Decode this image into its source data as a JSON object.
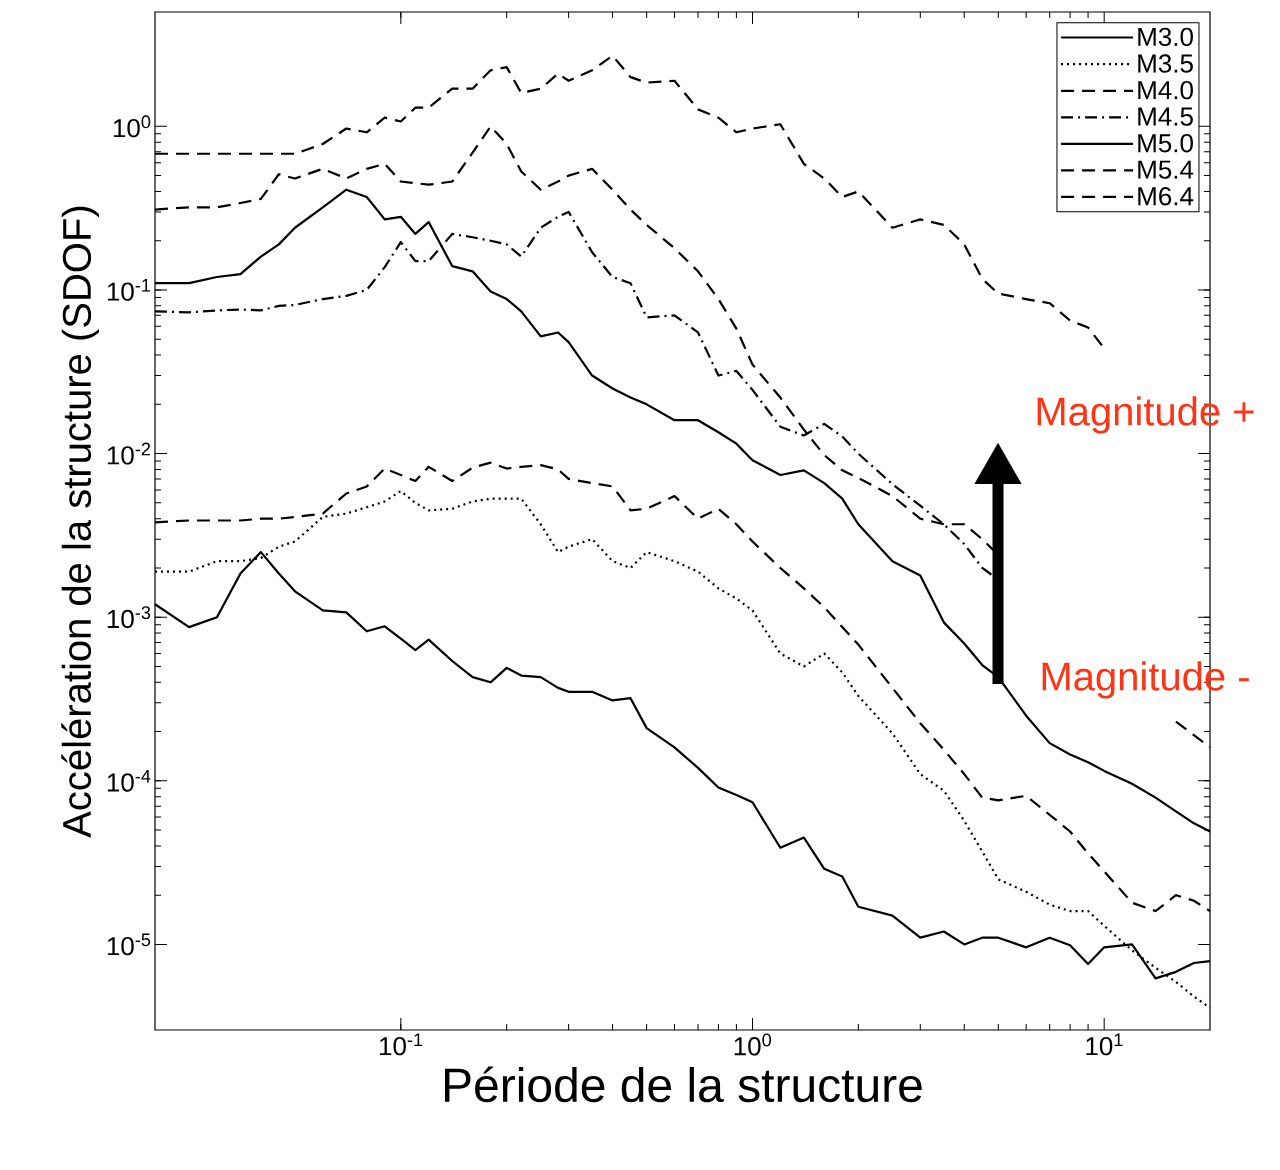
{
  "chart_data": {
    "type": "line",
    "xlabel": "Période de la structure",
    "ylabel": "Accélération de la structure (SDOF)",
    "log": "xy",
    "xlim": [
      0.02,
      20
    ],
    "ylim": [
      3e-06,
      5
    ],
    "xticks": [
      {
        "value": 0.1,
        "label": "10$^{-1}$"
      },
      {
        "value": 1,
        "label": "10$^{0}$"
      },
      {
        "value": 10,
        "label": "10$^{1}$"
      }
    ],
    "yticks": [
      {
        "value": 1e-05,
        "label": "10$^{-5}$"
      },
      {
        "value": 0.0001,
        "label": "10$^{-4}$"
      },
      {
        "value": 0.001,
        "label": "10$^{-3}$"
      },
      {
        "value": 0.01,
        "label": "10$^{-2}$"
      },
      {
        "value": 0.1,
        "label": "10$^{-1}$"
      },
      {
        "value": 1,
        "label": "10$^{0}$"
      }
    ],
    "legend": "top right",
    "annotations": [
      "Magnitude +",
      "Magnitude -"
    ],
    "x": [
      0.02,
      0.025,
      0.03,
      0.035,
      0.04,
      0.045,
      0.05,
      0.06,
      0.07,
      0.08,
      0.09,
      0.1,
      0.11,
      0.12,
      0.14,
      0.16,
      0.18,
      0.2,
      0.22,
      0.25,
      0.28,
      0.3,
      0.35,
      0.4,
      0.45,
      0.5,
      0.6,
      0.7,
      0.8,
      0.9,
      1,
      1.2,
      1.4,
      1.6,
      1.8,
      2,
      2.5,
      3,
      3.5,
      4,
      4.5,
      5,
      6,
      7,
      8,
      9,
      10,
      12,
      14,
      16,
      18,
      20
    ],
    "series": [
      {
        "name": "M3.0",
        "color": "#000000",
        "line_style": "solid",
        "values": [
          0.0012,
          0.00087,
          0.001,
          0.00185,
          0.0025,
          0.00185,
          0.00144,
          0.0011,
          0.00107,
          0.00082,
          0.00088,
          0.00074,
          0.00063,
          0.00073,
          0.00054,
          0.00043,
          0.0004,
          0.00049,
          0.00044,
          0.00043,
          0.00037,
          0.00035,
          0.00035,
          0.00031,
          0.00032,
          0.00021,
          0.00016,
          0.00012,
          9.1e-05,
          8.2e-05,
          7.4e-05,
          3.9e-05,
          4.5e-05,
          2.9e-05,
          2.6e-05,
          1.7e-05,
          1.5e-05,
          1.1e-05,
          1.2e-05,
          1e-05,
          1.1e-05,
          1.1e-05,
          9.6e-06,
          1.1e-05,
          9.9e-06,
          7.6e-06,
          9.6e-06,
          1e-05,
          6.2e-06,
          6.8e-06,
          7.7e-06,
          7.9e-06
        ]
      },
      {
        "name": "M3.5",
        "color": "#000000",
        "line_style": "dotted",
        "values": [
          0.0019,
          0.0019,
          0.0022,
          0.0022,
          0.0023,
          0.0027,
          0.0029,
          0.0041,
          0.0043,
          0.0047,
          0.0051,
          0.0059,
          0.005,
          0.0045,
          0.0046,
          0.0051,
          0.0053,
          0.0053,
          0.0053,
          0.0037,
          0.0025,
          0.0027,
          0.003,
          0.0022,
          0.002,
          0.0025,
          0.0022,
          0.0019,
          0.0015,
          0.0013,
          0.0011,
          0.0006,
          0.0005,
          0.0006,
          0.00046,
          0.00033,
          0.000195,
          0.00011,
          8.7e-05,
          5.7e-05,
          3.7e-05,
          2.5e-05,
          2.1e-05,
          1.75e-05,
          1.6e-05,
          1.6e-05,
          1.3e-05,
          9.2e-06,
          7.2e-06,
          5.9e-06,
          4.8e-06,
          4.1e-06
        ]
      },
      {
        "name": "M4.0",
        "color": "#000000",
        "line_style": "dashed",
        "values": [
          0.0038,
          0.0039,
          0.0039,
          0.0039,
          0.004,
          0.004,
          0.0041,
          0.0043,
          0.0057,
          0.0063,
          0.0081,
          0.0074,
          0.0068,
          0.0083,
          0.0068,
          0.0082,
          0.0088,
          0.0081,
          0.0083,
          0.0085,
          0.008,
          0.007,
          0.0066,
          0.0063,
          0.0045,
          0.0046,
          0.0055,
          0.004,
          0.0046,
          0.0037,
          0.0029,
          0.002,
          0.0015,
          0.00115,
          0.00087,
          0.00068,
          0.00037,
          0.000225,
          0.000155,
          0.00011,
          7.9e-05,
          7.6e-05,
          8.1e-05,
          6.2e-05,
          4.9e-05,
          3.6e-05,
          2.8e-05,
          1.8e-05,
          1.6e-05,
          2e-05,
          1.85e-05,
          1.6e-05
        ]
      },
      {
        "name": "M4.5",
        "color": "#000000",
        "line_style": "dashdot",
        "values": [
          0.074,
          0.073,
          0.075,
          0.076,
          0.075,
          0.08,
          0.081,
          0.088,
          0.092,
          0.1,
          0.138,
          0.196,
          0.15,
          0.15,
          0.22,
          0.21,
          0.2,
          0.19,
          0.16,
          0.24,
          0.28,
          0.3,
          0.17,
          0.12,
          0.11,
          0.068,
          0.07,
          0.055,
          0.03,
          0.032,
          0.0245,
          0.0146,
          0.0129,
          0.0152,
          0.0127,
          0.01,
          0.0065,
          0.0048,
          0.0037,
          0.0028,
          0.002,
          0.0017,
          null,
          null,
          null,
          null,
          null,
          null,
          null,
          null,
          null,
          null
        ]
      },
      {
        "name": "M5.0",
        "color": "#000000",
        "line_style": "solid",
        "values": [
          0.11,
          0.11,
          0.12,
          0.125,
          0.16,
          0.19,
          0.24,
          0.32,
          0.41,
          0.37,
          0.27,
          0.28,
          0.22,
          0.26,
          0.14,
          0.13,
          0.098,
          0.088,
          0.074,
          0.052,
          0.055,
          0.048,
          0.03,
          0.025,
          0.022,
          0.02,
          0.016,
          0.016,
          0.0135,
          0.0115,
          0.0091,
          0.0074,
          0.0079,
          0.0066,
          0.0053,
          0.0037,
          0.0022,
          0.0018,
          0.00093,
          0.00069,
          0.00051,
          0.00043,
          0.00025,
          0.00017,
          0.000145,
          0.00013,
          0.000115,
          9.6e-05,
          7.9e-05,
          6.5e-05,
          5.5e-05,
          4.9e-05
        ]
      },
      {
        "name": "M5.4",
        "color": "#000000",
        "line_style": "dashed",
        "values": [
          0.31,
          0.32,
          0.32,
          0.34,
          0.36,
          0.51,
          0.48,
          0.55,
          0.48,
          0.55,
          0.59,
          0.46,
          0.45,
          0.44,
          0.46,
          0.69,
          1.0,
          0.78,
          0.53,
          0.41,
          0.46,
          0.5,
          0.55,
          0.41,
          0.31,
          0.25,
          0.18,
          0.13,
          0.088,
          0.058,
          0.035,
          0.022,
          0.014,
          0.0098,
          0.0079,
          0.0071,
          0.0055,
          0.004,
          0.0037,
          0.0037,
          0.003,
          0.0024,
          null,
          null,
          null,
          null,
          null,
          null,
          null,
          null,
          null,
          null
        ]
      },
      {
        "name": "M6.4",
        "color": "#000000",
        "line_style": "dashed",
        "values": [
          0.68,
          0.68,
          0.68,
          0.68,
          0.68,
          0.68,
          0.68,
          0.78,
          0.97,
          0.92,
          1.13,
          1.07,
          1.3,
          1.3,
          1.7,
          1.7,
          2.2,
          2.3,
          1.6,
          1.7,
          2.1,
          1.9,
          2.2,
          2.7,
          2.0,
          1.85,
          1.9,
          1.27,
          1.13,
          0.92,
          0.97,
          1.03,
          0.59,
          0.48,
          0.37,
          0.4,
          0.24,
          0.27,
          0.25,
          0.19,
          0.117,
          0.095,
          0.088,
          0.083,
          0.065,
          0.059,
          0.044,
          null,
          null,
          0.00023,
          0.00019,
          0.00016
        ]
      }
    ]
  }
}
